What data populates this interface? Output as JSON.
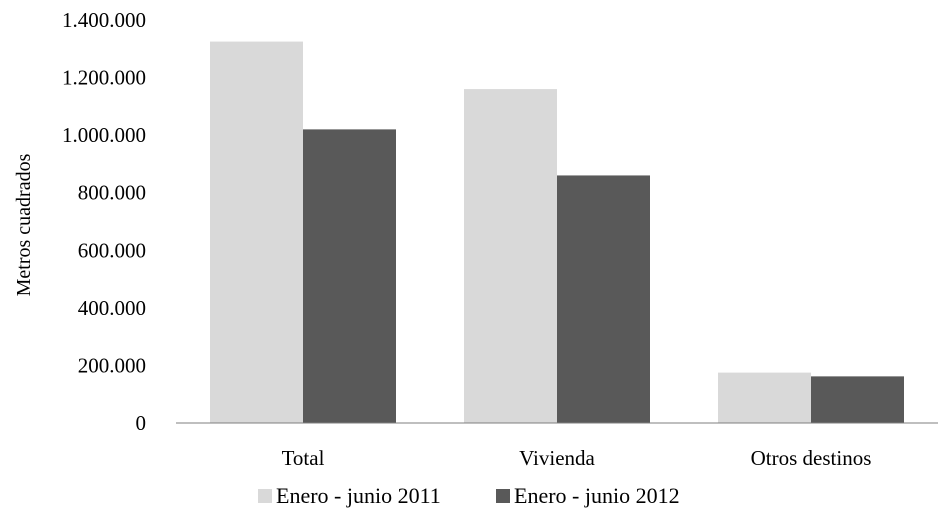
{
  "colors": {
    "series_2011": "#d9d9d9",
    "series_2012": "#595959",
    "axis": "#7f7f7f"
  },
  "chart_data": {
    "type": "bar",
    "title": "",
    "xlabel": "",
    "ylabel": "Metros cuadrados",
    "categories": [
      "Total",
      "Vivienda",
      "Otros destinos"
    ],
    "series": [
      {
        "name": "Enero - junio 2011",
        "values": [
          1325000,
          1160000,
          175000
        ]
      },
      {
        "name": "Enero - junio 2012",
        "values": [
          1020000,
          860000,
          162000
        ]
      }
    ],
    "ylim": [
      0,
      1400000
    ],
    "yticks": [
      0,
      200000,
      400000,
      600000,
      800000,
      1000000,
      1200000,
      1400000
    ],
    "ytick_labels": [
      "0",
      "200.000",
      "400.000",
      "600.000",
      "800.000",
      "1.000.000",
      "1.200.000",
      "1.400.000"
    ],
    "grid": false,
    "legend_position": "bottom"
  }
}
